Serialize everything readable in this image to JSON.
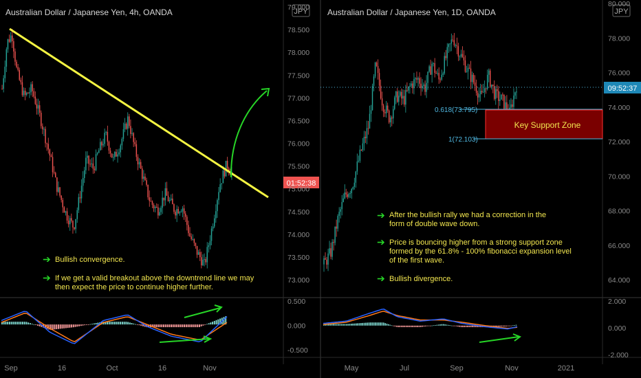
{
  "colors": {
    "background": "#000000",
    "up_candle": "#26a69a",
    "down_candle": "#ef5350",
    "trendline": "#f5f542",
    "text_yellow": "#f2e64f",
    "arrow_green": "#27d627",
    "macd_line": "#2962ff",
    "signal_line": "#ff7a1a",
    "fib_label": "#4fb7e0",
    "price_tag": "#ef5350",
    "price_tag_blue": "#1e88b7",
    "support_zone": "#7a0000",
    "axis_text": "#8a8a8a",
    "divider": "#3a3a3a"
  },
  "left": {
    "title": "Australian Dollar / Japanese Yen, 4h, OANDA",
    "currency_badge": "JPY",
    "price_tag": "01:52:38",
    "price_axis": [
      "79.000",
      "78.500",
      "78.000",
      "77.500",
      "77.000",
      "76.500",
      "76.000",
      "75.500",
      "75.000",
      "74.500",
      "74.000",
      "73.500",
      "73.000"
    ],
    "osc_axis": [
      "0.500",
      "0.000",
      "-0.500"
    ],
    "time_axis": [
      "Sep",
      "16",
      "Oct",
      "16",
      "Nov"
    ],
    "notes": [
      {
        "text": "Bullish convergence."
      },
      {
        "text": "If we get a valid breakout above the downtrend line we may then expect the price to continue higher further."
      }
    ]
  },
  "right": {
    "title": "Australian Dollar / Japanese Yen, 1D, OANDA",
    "currency_badge": "JPY",
    "price_tag": "09:52:37",
    "price_axis": [
      "80.000",
      "78.000",
      "76.000",
      "74.000",
      "72.000",
      "70.000",
      "68.000",
      "66.000",
      "64.000"
    ],
    "osc_axis": [
      "2.000",
      "0.000",
      "-2.000"
    ],
    "time_axis": [
      "May",
      "Jul",
      "Sep",
      "Nov",
      "2021"
    ],
    "fib_labels": [
      "0.618(73.795)",
      "1(72.103)"
    ],
    "zone_label": "Key Support Zone",
    "notes": [
      {
        "text": "After the bullish rally we had a correction in the form of double wave down."
      },
      {
        "text": "Price is bouncing higher from a strong support zone formed by the 61.8% - 100% fibonacci expansion level of the first wave."
      },
      {
        "text": "Bullish divergence."
      }
    ]
  },
  "chart_data": [
    {
      "type": "candlestick",
      "title": "Australian Dollar / Japanese Yen, 4h, OANDA",
      "ylim": [
        72.75,
        79.25
      ],
      "x_ticks": [
        "Sep",
        "16",
        "Oct",
        "16",
        "Nov"
      ],
      "price_path": [
        [
          0,
          77.3
        ],
        [
          2,
          78.4
        ],
        [
          4,
          78.6
        ],
        [
          6,
          77.7
        ],
        [
          9,
          77.1
        ],
        [
          12,
          77.3
        ],
        [
          16,
          76.5
        ],
        [
          19,
          75.8
        ],
        [
          22,
          75.0
        ],
        [
          26,
          74.3
        ],
        [
          29,
          74.0
        ],
        [
          31,
          74.6
        ],
        [
          34,
          75.6
        ],
        [
          37,
          75.4
        ],
        [
          39,
          75.8
        ],
        [
          42,
          76.2
        ],
        [
          45,
          75.6
        ],
        [
          48,
          76.0
        ],
        [
          51,
          76.6
        ],
        [
          54,
          75.8
        ],
        [
          57,
          75.2
        ],
        [
          60,
          74.6
        ],
        [
          63,
          74.4
        ],
        [
          66,
          74.8
        ],
        [
          70,
          74.4
        ],
        [
          73,
          74.5
        ],
        [
          76,
          73.8
        ],
        [
          79,
          73.4
        ],
        [
          82,
          73.1
        ],
        [
          85,
          74.0
        ],
        [
          88,
          75.0
        ],
        [
          91,
          75.5
        ],
        [
          93,
          75.3
        ]
      ],
      "trendline": [
        [
          78.5,
          0
        ],
        [
          74.9,
          95
        ]
      ],
      "macd_path": [
        [
          0,
          0.1
        ],
        [
          10,
          0.35
        ],
        [
          20,
          -0.2
        ],
        [
          30,
          -0.5
        ],
        [
          42,
          0.1
        ],
        [
          52,
          0.25
        ],
        [
          60,
          -0.05
        ],
        [
          70,
          -0.3
        ],
        [
          82,
          -0.45
        ],
        [
          93,
          0.2
        ]
      ],
      "signal_path": [
        [
          0,
          0.05
        ],
        [
          10,
          0.3
        ],
        [
          20,
          -0.1
        ],
        [
          30,
          -0.45
        ],
        [
          42,
          0.05
        ],
        [
          52,
          0.2
        ],
        [
          60,
          0.0
        ],
        [
          70,
          -0.25
        ],
        [
          82,
          -0.4
        ],
        [
          93,
          0.05
        ]
      ],
      "osc_ylim": [
        -0.65,
        0.6
      ]
    },
    {
      "type": "candlestick",
      "title": "Australian Dollar / Japanese Yen, 1D, OANDA",
      "ylim": [
        62.5,
        80.5
      ],
      "x_ticks": [
        "May",
        "Jul",
        "Sep",
        "Nov",
        "2021"
      ],
      "price_path": [
        [
          0,
          63.5
        ],
        [
          3,
          64.3
        ],
        [
          6,
          66.5
        ],
        [
          9,
          68.0
        ],
        [
          12,
          68.6
        ],
        [
          14,
          69.8
        ],
        [
          16,
          71.0
        ],
        [
          19,
          72.5
        ],
        [
          22,
          76.5
        ],
        [
          25,
          74.0
        ],
        [
          28,
          73.0
        ],
        [
          31,
          74.5
        ],
        [
          34,
          74.2
        ],
        [
          37,
          75.2
        ],
        [
          40,
          75.6
        ],
        [
          43,
          75.0
        ],
        [
          46,
          76.6
        ],
        [
          49,
          75.5
        ],
        [
          52,
          77.0
        ],
        [
          55,
          78.3
        ],
        [
          58,
          77.2
        ],
        [
          61,
          76.2
        ],
        [
          64,
          75.3
        ],
        [
          67,
          74.3
        ],
        [
          70,
          75.8
        ],
        [
          73,
          74.5
        ],
        [
          76,
          74.2
        ],
        [
          79,
          73.3
        ],
        [
          82,
          75.2
        ]
      ],
      "current_price": 75.2,
      "fib_levels": [
        73.795,
        72.103
      ],
      "support_zone": [
        72.103,
        73.795
      ],
      "macd_path": [
        [
          0,
          0.2
        ],
        [
          10,
          0.4
        ],
        [
          20,
          1.1
        ],
        [
          26,
          1.5
        ],
        [
          32,
          0.8
        ],
        [
          42,
          0.4
        ],
        [
          52,
          0.6
        ],
        [
          60,
          0.2
        ],
        [
          70,
          -0.1
        ],
        [
          80,
          -0.3
        ],
        [
          84,
          -0.1
        ]
      ],
      "signal_path": [
        [
          0,
          0.1
        ],
        [
          10,
          0.3
        ],
        [
          20,
          0.9
        ],
        [
          26,
          1.3
        ],
        [
          32,
          0.9
        ],
        [
          42,
          0.5
        ],
        [
          52,
          0.5
        ],
        [
          60,
          0.3
        ],
        [
          70,
          0.0
        ],
        [
          80,
          -0.25
        ],
        [
          84,
          -0.15
        ]
      ],
      "osc_ylim": [
        -2.6,
        2.2
      ]
    }
  ]
}
